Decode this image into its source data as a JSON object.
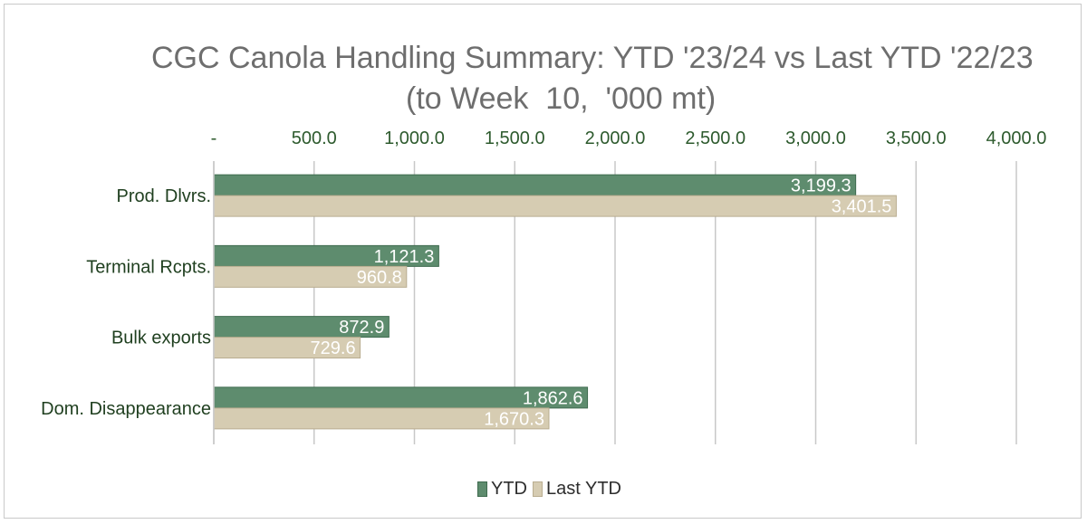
{
  "chart_data": {
    "type": "bar",
    "orientation": "horizontal",
    "title": "CGC Canola Handling Summary: YTD '23/24 vs Last YTD '22/23",
    "subtitle": "(to Week  10,  '000 mt)",
    "categories": [
      "Prod. Dlvrs.",
      "Terminal Rcpts.",
      "Bulk exports",
      "Dom. Disappearance"
    ],
    "series": [
      {
        "name": "YTD",
        "values": [
          3199.3,
          1121.3,
          872.9,
          1862.6
        ],
        "labels": [
          "3,199.3",
          "1,121.3",
          "872.9",
          "1,862.6"
        ],
        "color": "#5e8c6e"
      },
      {
        "name": "Last YTD",
        "values": [
          3401.5,
          960.8,
          729.6,
          1670.3
        ],
        "labels": [
          "3,401.5",
          "960.8",
          "729.6",
          "1,670.3"
        ],
        "color": "#d6ccb2"
      }
    ],
    "xlim": [
      0,
      4000
    ],
    "x_ticks": [
      0,
      500,
      1000,
      1500,
      2000,
      2500,
      3000,
      3500,
      4000
    ],
    "x_tick_labels": [
      "-",
      "500.0",
      "1,000.0",
      "1,500.0",
      "2,000.0",
      "2,500.0",
      "3,000.0",
      "3,500.0",
      "4,000.0"
    ],
    "x_axis_position": "top",
    "grid": true,
    "legend": "bottom"
  }
}
